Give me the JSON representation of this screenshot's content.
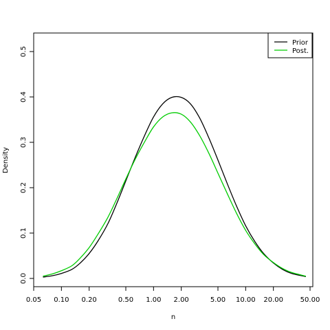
{
  "chart_data": {
    "type": "line",
    "xscale": "log",
    "xlabel": "n",
    "ylabel": "Density",
    "xlim": [
      0.05,
      50
    ],
    "ylim": [
      0,
      0.52
    ],
    "x_ticks": [
      0.05,
      0.1,
      0.2,
      0.5,
      1,
      2,
      5,
      10,
      20,
      50
    ],
    "x_tick_labels": [
      "0.05",
      "0.10",
      "0.20",
      "0.50",
      "1.00",
      "2.00",
      "5.00",
      "10.00",
      "20.00",
      "50.00"
    ],
    "y_ticks": [
      0,
      0.1,
      0.2,
      0.3,
      0.4,
      0.5
    ],
    "y_tick_labels": [
      "0.0",
      "0.1",
      "0.2",
      "0.3",
      "0.4",
      "0.5"
    ],
    "grid": false,
    "legend_position": "top-right",
    "series": [
      {
        "name": "Prior",
        "color": "#000000",
        "x": [
          0.063,
          0.08,
          0.1,
          0.13,
          0.16,
          0.2,
          0.25,
          0.32,
          0.4,
          0.5,
          0.63,
          0.8,
          1.0,
          1.26,
          1.58,
          2.0,
          2.51,
          3.16,
          3.98,
          5.0,
          6.31,
          7.94,
          10.0,
          12.6,
          15.8,
          20.0,
          25.1,
          31.6,
          45.0
        ],
        "y": [
          0.003,
          0.006,
          0.011,
          0.02,
          0.034,
          0.055,
          0.083,
          0.121,
          0.166,
          0.215,
          0.266,
          0.315,
          0.356,
          0.385,
          0.399,
          0.399,
          0.385,
          0.354,
          0.31,
          0.261,
          0.209,
          0.16,
          0.116,
          0.081,
          0.054,
          0.034,
          0.02,
          0.011,
          0.004
        ]
      },
      {
        "name": "Post.",
        "color": "#00cc00",
        "x": [
          0.063,
          0.08,
          0.1,
          0.13,
          0.16,
          0.2,
          0.25,
          0.32,
          0.4,
          0.5,
          0.63,
          0.8,
          1.0,
          1.26,
          1.58,
          2.0,
          2.51,
          3.16,
          3.98,
          5.0,
          6.31,
          7.94,
          10.0,
          12.6,
          15.8,
          20.0,
          25.1,
          31.6,
          45.0
        ],
        "y": [
          0.005,
          0.01,
          0.017,
          0.028,
          0.045,
          0.068,
          0.098,
          0.135,
          0.176,
          0.219,
          0.262,
          0.301,
          0.334,
          0.356,
          0.365,
          0.362,
          0.345,
          0.315,
          0.276,
          0.232,
          0.187,
          0.144,
          0.106,
          0.076,
          0.052,
          0.035,
          0.022,
          0.013,
          0.005
        ]
      }
    ]
  }
}
